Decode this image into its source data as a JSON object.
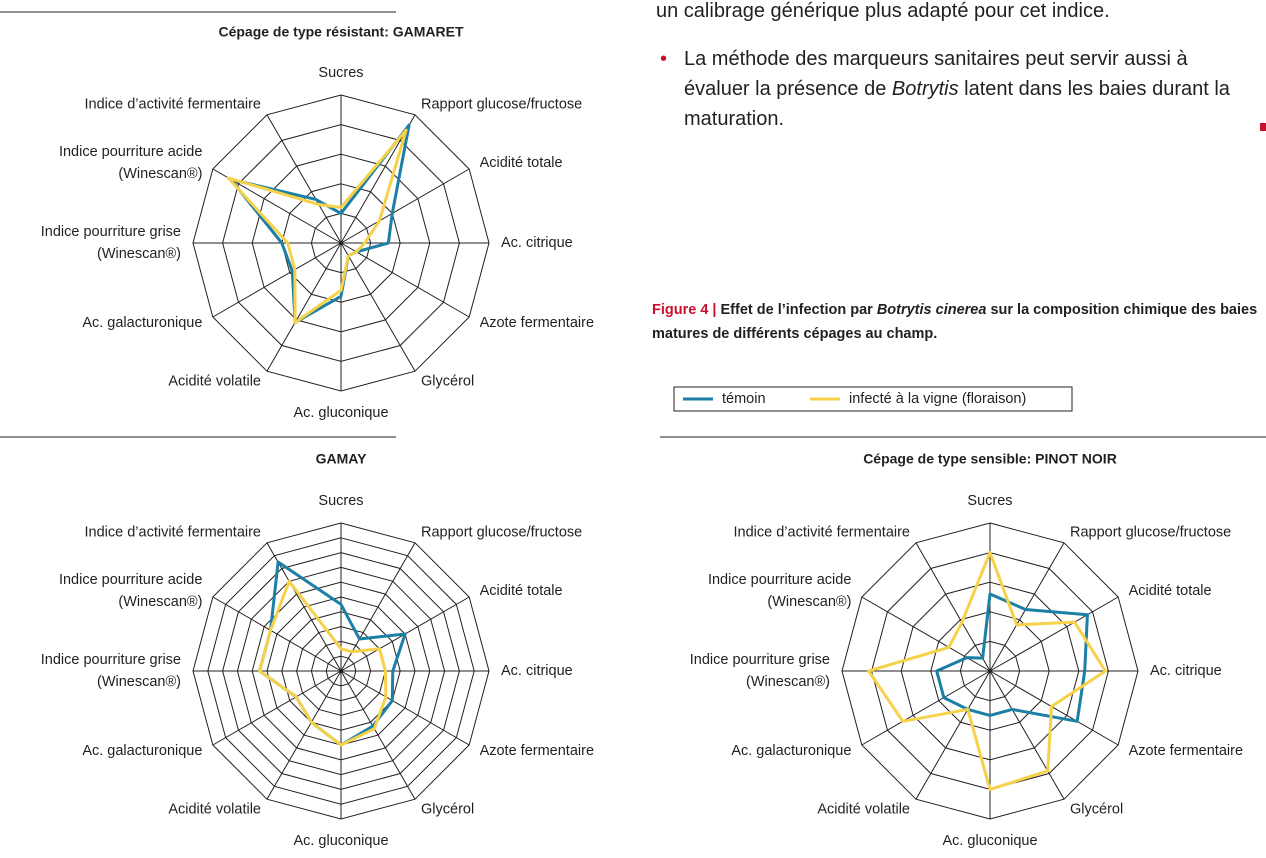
{
  "text": {
    "line1": "un calibrage générique plus adapté pour cet indice.",
    "bullet": [
      "La méthode des marqueurs sanitaires peut servir aussi à évaluer la présence de ",
      "Botrytis",
      " latent dans les baies durant la maturation."
    ],
    "caption_label": "Figure 4 | ",
    "caption": [
      "Effet de l’infection par ",
      "Botrytis cinerea",
      " sur la composition chimique des baies matures de différents cépages au champ."
    ]
  },
  "chart_data": [
    {
      "type": "radar",
      "title": "Cépage de type résistant: GAMARET",
      "categories": [
        "Sucres",
        "Rapport glucose/fructose",
        "Acidité totale",
        "Ac. citrique",
        "Azote fermentaire",
        "Glycérol",
        "Ac. gluconique",
        "Acidité volatile",
        "Ac. galacturonique",
        "Indice pourriture grise (Winescan®)",
        "Indice pourriture acide (Winescan®)",
        "Indice d’activité fermentaire"
      ],
      "rlim": [
        0,
        5
      ],
      "rticks": [
        1,
        2,
        3,
        4,
        5
      ],
      "series": [
        {
          "name": "témoin",
          "color": "#1b7fa6",
          "values": [
            1.0,
            4.6,
            2.0,
            1.6,
            0.6,
            0.5,
            1.8,
            3.1,
            1.9,
            2.0,
            4.3,
            1.7
          ]
        },
        {
          "name": "infecté à la vigne (floraison)",
          "color": "#f6d24a",
          "values": [
            1.2,
            4.4,
            1.5,
            0.8,
            0.6,
            0.5,
            1.6,
            3.1,
            1.8,
            1.8,
            4.4,
            1.5
          ]
        }
      ]
    },
    {
      "type": "radar",
      "title": "GAMAY",
      "categories": [
        "Sucres",
        "Rapport glucose/fructose",
        "Acidité totale",
        "Ac. citrique",
        "Azote fermentaire",
        "Glycérol",
        "Ac. gluconique",
        "Acidité volatile",
        "Ac. galacturonique",
        "Indice pourriture grise (Winescan®)",
        "Indice pourriture acide (Winescan®)",
        "Indice d’activité fermentaire"
      ],
      "rlim": [
        0,
        10
      ],
      "rticks": [
        1,
        2,
        3,
        4,
        5,
        6,
        7,
        8,
        9,
        10
      ],
      "series": [
        {
          "color": "#1b7fa6",
          "values": [
            4.5,
            2.5,
            5,
            3.5,
            4,
            4.3,
            5,
            4,
            3.5,
            5.5,
            5.5,
            8.5
          ]
        },
        {
          "color": "#f6d24a",
          "values": [
            1.5,
            1.5,
            3,
            3,
            3.5,
            4.5,
            5,
            4,
            3.5,
            5.5,
            5.5,
            7
          ]
        }
      ]
    },
    {
      "type": "radar",
      "title": "Cépage de type sensible: PINOT NOIR",
      "categories": [
        "Sucres",
        "Rapport glucose/fructose",
        "Acidité totale",
        "Ac. citrique",
        "Azote fermentaire",
        "Glycérol",
        "Ac. gluconique",
        "Acidité volatile",
        "Ac. galacturonique",
        "Indice pourriture grise (Winescan®)",
        "Indice pourriture acide (Winescan®)",
        "Indice d’activité fermentaire"
      ],
      "rlim": [
        0,
        5
      ],
      "rticks": [
        1,
        2,
        3,
        4,
        5
      ],
      "series": [
        {
          "color": "#1b7fa6",
          "values": [
            2.6,
            2.4,
            3.8,
            3.2,
            3.4,
            1.5,
            1.5,
            1.5,
            1.8,
            1.8,
            0.9,
            0.5
          ]
        },
        {
          "color": "#f6d24a",
          "values": [
            4.0,
            1.8,
            3.3,
            3.9,
            2.4,
            3.9,
            4.0,
            1.5,
            3.4,
            4.1,
            1.6,
            1.9
          ]
        }
      ]
    }
  ]
}
